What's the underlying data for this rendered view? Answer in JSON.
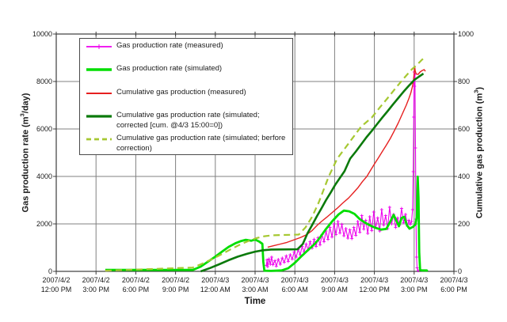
{
  "chart_data": {
    "type": "line",
    "title": "",
    "xlabel": "Time",
    "x_axis": {
      "range_hours": [
        0,
        30
      ],
      "tick_interval_hours": 3,
      "tick_labels": [
        [
          "2007/4/2",
          "12:00 PM"
        ],
        [
          "2007/4/2",
          "3:00 PM"
        ],
        [
          "2007/4/2",
          "6:00 PM"
        ],
        [
          "2007/4/2",
          "9:00 PM"
        ],
        [
          "2007/4/3",
          "12:00 AM"
        ],
        [
          "2007/4/3",
          "3:00 AM"
        ],
        [
          "2007/4/3",
          "6:00 AM"
        ],
        [
          "2007/4/3",
          "9:00 AM"
        ],
        [
          "2007/4/3",
          "12:00 PM"
        ],
        [
          "2007/4/3",
          "3:00 PM"
        ],
        [
          "2007/4/3",
          "6:00 PM"
        ]
      ]
    },
    "left_axis": {
      "title_pre": "Gas production rate (m",
      "title_sup": "3",
      "title_post": "/day)",
      "range": [
        0,
        10000
      ],
      "ticks": [
        "0",
        "2000",
        "4000",
        "6000",
        "8000",
        "10000"
      ]
    },
    "right_axis": {
      "title_pre": "Cumulative gas production (m",
      "title_sup": "3",
      "title_post": ")",
      "range": [
        0,
        1000
      ],
      "ticks": [
        "0",
        "200",
        "400",
        "600",
        "800",
        "1000"
      ]
    },
    "colors": {
      "grid": "#808080",
      "frame": "#3c3c3c",
      "text": "#1a1a1a",
      "background": "#ffffff"
    },
    "series": [
      {
        "key": "measured_rate",
        "name": "Gas production rate (measured)",
        "color": "#EE00EE",
        "axis": "left",
        "width": 1.1,
        "marker": "plus",
        "points": [
          [
            15.85,
            250
          ],
          [
            15.9,
            480
          ],
          [
            15.95,
            200
          ],
          [
            16.05,
            520
          ],
          [
            16.15,
            300
          ],
          [
            16.25,
            600
          ],
          [
            16.35,
            280
          ],
          [
            16.5,
            450
          ],
          [
            16.6,
            220
          ],
          [
            16.75,
            500
          ],
          [
            16.9,
            300
          ],
          [
            17.05,
            560
          ],
          [
            17.2,
            380
          ],
          [
            17.35,
            650
          ],
          [
            17.5,
            420
          ],
          [
            17.65,
            700
          ],
          [
            17.8,
            520
          ],
          [
            17.95,
            820
          ],
          [
            18.1,
            600
          ],
          [
            18.25,
            920
          ],
          [
            18.4,
            700
          ],
          [
            18.55,
            1050
          ],
          [
            18.7,
            820
          ],
          [
            18.85,
            1150
          ],
          [
            19.0,
            900
          ],
          [
            19.15,
            1250
          ],
          [
            19.3,
            980
          ],
          [
            19.45,
            1350
          ],
          [
            19.6,
            1050
          ],
          [
            19.75,
            1420
          ],
          [
            19.9,
            1120
          ],
          [
            20.05,
            1550
          ],
          [
            20.2,
            1250
          ],
          [
            20.35,
            1700
          ],
          [
            20.5,
            1350
          ],
          [
            20.65,
            1850
          ],
          [
            20.8,
            1450
          ],
          [
            20.95,
            2000
          ],
          [
            21.1,
            1550
          ],
          [
            21.25,
            2100
          ],
          [
            21.4,
            1620
          ],
          [
            21.55,
            1980
          ],
          [
            21.7,
            1500
          ],
          [
            21.85,
            1800
          ],
          [
            22.0,
            1400
          ],
          [
            22.15,
            1750
          ],
          [
            22.3,
            1380
          ],
          [
            22.45,
            1850
          ],
          [
            22.6,
            1520
          ],
          [
            22.75,
            2100
          ],
          [
            22.9,
            1650
          ],
          [
            23.05,
            2350
          ],
          [
            23.2,
            1780
          ],
          [
            23.35,
            2150
          ],
          [
            23.5,
            1600
          ],
          [
            23.65,
            2300
          ],
          [
            23.8,
            1720
          ],
          [
            23.95,
            2500
          ],
          [
            24.1,
            1850
          ],
          [
            24.25,
            2250
          ],
          [
            24.4,
            1700
          ],
          [
            24.55,
            2600
          ],
          [
            24.7,
            1950
          ],
          [
            24.85,
            2350
          ],
          [
            25.0,
            1800
          ],
          [
            25.15,
            2700
          ],
          [
            25.3,
            2000
          ],
          [
            25.45,
            2400
          ],
          [
            25.6,
            1850
          ],
          [
            25.75,
            2250
          ],
          [
            25.9,
            1950
          ],
          [
            26.05,
            2650
          ],
          [
            26.2,
            2050
          ],
          [
            26.35,
            2400
          ],
          [
            26.5,
            1900
          ],
          [
            26.6,
            2150
          ],
          [
            26.7,
            1980
          ],
          [
            26.8,
            2100
          ],
          [
            26.88,
            2600
          ],
          [
            26.93,
            4200
          ],
          [
            26.97,
            6500
          ],
          [
            27.0,
            8400
          ],
          [
            27.03,
            7800
          ],
          [
            27.06,
            8300
          ],
          [
            27.1,
            5200
          ],
          [
            27.14,
            2200
          ],
          [
            27.18,
            600
          ],
          [
            27.22,
            150
          ],
          [
            27.3,
            30
          ]
        ]
      },
      {
        "key": "simulated_rate",
        "name": "Gas production rate (simulated)",
        "color": "#00DE00",
        "axis": "left",
        "width": 2.8,
        "points": [
          [
            3.7,
            60
          ],
          [
            10.3,
            60
          ],
          [
            10.9,
            200
          ],
          [
            11.5,
            430
          ],
          [
            12.0,
            620
          ],
          [
            12.5,
            830
          ],
          [
            13.0,
            1030
          ],
          [
            13.5,
            1180
          ],
          [
            13.9,
            1270
          ],
          [
            14.3,
            1330
          ],
          [
            14.7,
            1290
          ],
          [
            15.0,
            1340
          ],
          [
            15.3,
            1260
          ],
          [
            15.55,
            1160
          ],
          [
            15.62,
            400
          ],
          [
            15.7,
            30
          ],
          [
            16.2,
            20
          ],
          [
            17.0,
            40
          ],
          [
            17.5,
            130
          ],
          [
            18.0,
            360
          ],
          [
            18.5,
            640
          ],
          [
            19.0,
            900
          ],
          [
            19.4,
            1100
          ],
          [
            19.8,
            1350
          ],
          [
            20.3,
            1750
          ],
          [
            20.8,
            2100
          ],
          [
            21.3,
            2400
          ],
          [
            21.7,
            2560
          ],
          [
            22.1,
            2530
          ],
          [
            22.5,
            2420
          ],
          [
            22.9,
            2200
          ],
          [
            23.3,
            2050
          ],
          [
            23.7,
            1930
          ],
          [
            24.1,
            1830
          ],
          [
            24.5,
            1760
          ],
          [
            24.9,
            1790
          ],
          [
            25.2,
            2100
          ],
          [
            25.45,
            2380
          ],
          [
            25.65,
            2150
          ],
          [
            25.85,
            1900
          ],
          [
            26.05,
            2250
          ],
          [
            26.25,
            2300
          ],
          [
            26.45,
            1950
          ],
          [
            26.65,
            1800
          ],
          [
            26.9,
            1870
          ],
          [
            27.1,
            1980
          ],
          [
            27.2,
            2300
          ],
          [
            27.27,
            3990
          ],
          [
            27.33,
            3100
          ],
          [
            27.38,
            800
          ],
          [
            27.45,
            60
          ],
          [
            27.6,
            40
          ],
          [
            27.95,
            40
          ],
          [
            28.0,
            0
          ]
        ]
      },
      {
        "key": "cumulative_measured",
        "name": "Cumulative gas production (measured)",
        "color": "#E62020",
        "axis": "right",
        "width": 1.4,
        "points": [
          [
            15.95,
            102
          ],
          [
            16.4,
            108
          ],
          [
            16.9,
            115
          ],
          [
            17.4,
            122
          ],
          [
            17.9,
            132
          ],
          [
            18.4,
            142
          ],
          [
            18.9,
            155
          ],
          [
            19.3,
            172
          ],
          [
            19.66,
            193
          ],
          [
            20.0,
            210
          ],
          [
            20.4,
            228
          ],
          [
            20.8,
            247
          ],
          [
            21.2,
            266
          ],
          [
            21.6,
            287
          ],
          [
            22.05,
            309
          ],
          [
            22.4,
            330
          ],
          [
            22.75,
            352
          ],
          [
            23.1,
            378
          ],
          [
            23.43,
            400
          ],
          [
            23.7,
            425
          ],
          [
            24.0,
            452
          ],
          [
            24.3,
            478
          ],
          [
            24.6,
            505
          ],
          [
            24.9,
            532
          ],
          [
            25.2,
            560
          ],
          [
            25.5,
            592
          ],
          [
            25.8,
            625
          ],
          [
            26.1,
            662
          ],
          [
            26.4,
            700
          ],
          [
            26.6,
            728
          ],
          [
            26.75,
            752
          ],
          [
            26.87,
            778
          ],
          [
            26.95,
            808
          ],
          [
            27.0,
            832
          ],
          [
            27.04,
            862
          ],
          [
            27.08,
            845
          ],
          [
            27.15,
            832
          ],
          [
            27.3,
            830
          ],
          [
            27.45,
            840
          ],
          [
            27.6,
            846
          ],
          [
            27.75,
            850
          ],
          [
            27.85,
            843
          ]
        ]
      },
      {
        "key": "cumulative_sim_corrected",
        "name": "Cumulative gas production rate (simulated; corrected [cum. @4/3 15:00=0])",
        "color": "#0B7A0B",
        "axis": "right",
        "width": 2.6,
        "points": [
          [
            10.9,
            0
          ],
          [
            11.6,
            14
          ],
          [
            12.3,
            30
          ],
          [
            13.0,
            47
          ],
          [
            13.7,
            62
          ],
          [
            14.4,
            74
          ],
          [
            15.0,
            83
          ],
          [
            15.6,
            89
          ],
          [
            16.2,
            92
          ],
          [
            18.2,
            93
          ],
          [
            18.6,
            115
          ],
          [
            18.95,
            160
          ],
          [
            19.3,
            195
          ],
          [
            19.66,
            232
          ],
          [
            20.0,
            265
          ],
          [
            20.35,
            300
          ],
          [
            20.7,
            332
          ],
          [
            21.05,
            365
          ],
          [
            21.4,
            394
          ],
          [
            21.75,
            422
          ],
          [
            22.17,
            475
          ],
          [
            22.6,
            505
          ],
          [
            23.0,
            535
          ],
          [
            23.4,
            565
          ],
          [
            23.8,
            592
          ],
          [
            24.2,
            620
          ],
          [
            24.6,
            648
          ],
          [
            25.0,
            675
          ],
          [
            25.4,
            703
          ],
          [
            25.8,
            730
          ],
          [
            26.2,
            757
          ],
          [
            26.6,
            782
          ],
          [
            27.0,
            806
          ],
          [
            27.35,
            820
          ],
          [
            27.7,
            833
          ]
        ]
      },
      {
        "key": "cumulative_sim_before",
        "name": "Cumulative gas production rate (simulated; berfore correction)",
        "color": "#A6C832",
        "axis": "right",
        "width": 2.2,
        "dash": "8,5",
        "points": [
          [
            3.7,
            3
          ],
          [
            10.3,
            16
          ],
          [
            11.0,
            32
          ],
          [
            11.7,
            50
          ],
          [
            12.4,
            70
          ],
          [
            13.1,
            91
          ],
          [
            13.8,
            111
          ],
          [
            14.5,
            128
          ],
          [
            15.1,
            140
          ],
          [
            15.7,
            148
          ],
          [
            16.3,
            152
          ],
          [
            18.3,
            155
          ],
          [
            18.8,
            185
          ],
          [
            19.3,
            230
          ],
          [
            19.8,
            290
          ],
          [
            20.56,
            400
          ],
          [
            21.2,
            475
          ],
          [
            21.8,
            520
          ],
          [
            22.4,
            565
          ],
          [
            23.0,
            610
          ],
          [
            23.8,
            648
          ],
          [
            24.4,
            690
          ],
          [
            25.0,
            730
          ],
          [
            25.6,
            772
          ],
          [
            26.2,
            812
          ],
          [
            26.8,
            850
          ],
          [
            27.3,
            875
          ],
          [
            27.6,
            892
          ],
          [
            27.9,
            905
          ]
        ]
      }
    ]
  }
}
